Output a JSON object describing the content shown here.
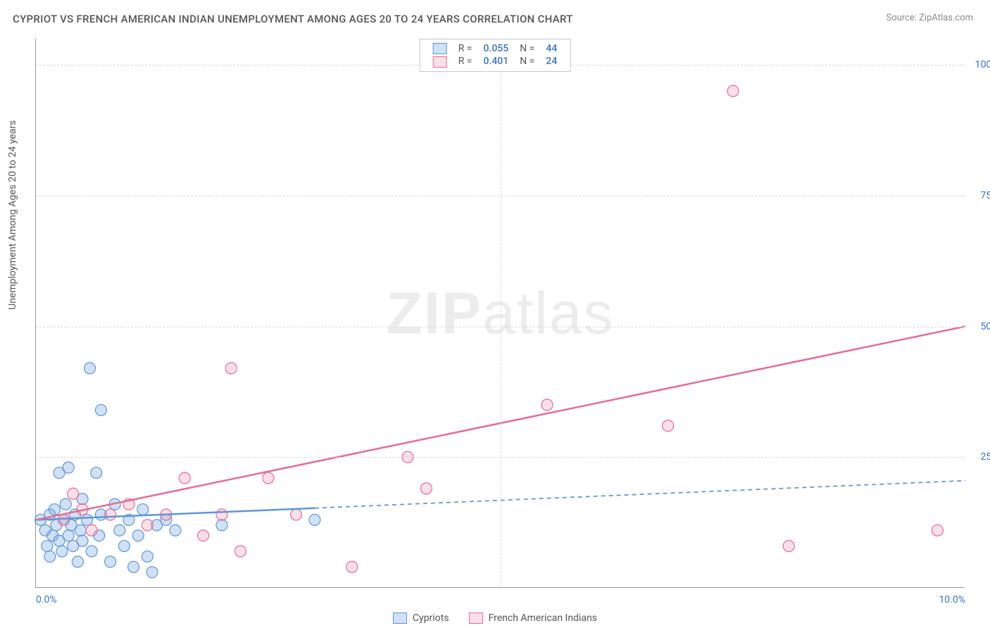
{
  "title": "CYPRIOT VS FRENCH AMERICAN INDIAN UNEMPLOYMENT AMONG AGES 20 TO 24 YEARS CORRELATION CHART",
  "source_prefix": "Source: ",
  "source_name": "ZipAtlas.com",
  "y_axis_label": "Unemployment Among Ages 20 to 24 years",
  "watermark_a": "ZIP",
  "watermark_b": "atlas",
  "chart": {
    "type": "scatter",
    "xlim": [
      0,
      10
    ],
    "ylim": [
      0,
      105
    ],
    "xticks": [
      0,
      10
    ],
    "xtick_labels": [
      "0.0%",
      "10.0%"
    ],
    "yticks": [
      25,
      50,
      75,
      100
    ],
    "ytick_labels": [
      "25.0%",
      "50.0%",
      "75.0%",
      "100.0%"
    ],
    "x_grid_at": [
      5
    ],
    "grid_color": "#d8d8d8",
    "axis_color": "#999999",
    "tick_label_color": "#3972c4",
    "background": "#ffffff",
    "marker_radius": 8,
    "marker_stroke_width": 1.2,
    "trend_line_width": 2.5,
    "trend_dash": "6 5"
  },
  "series": [
    {
      "id": "cypriots",
      "label": "Cypriots",
      "fill": "rgba(120,170,225,0.35)",
      "stroke": "#5f96d6",
      "R_label": "R =",
      "R": "0.055",
      "N_label": "N =",
      "N": "44",
      "trend": {
        "x1": 0.0,
        "y1": 13.0,
        "x2": 10.0,
        "y2": 20.5,
        "solid_until_x": 3.0
      },
      "points": [
        [
          0.05,
          13
        ],
        [
          0.1,
          11
        ],
        [
          0.12,
          8
        ],
        [
          0.15,
          14
        ],
        [
          0.15,
          6
        ],
        [
          0.18,
          10
        ],
        [
          0.2,
          15
        ],
        [
          0.22,
          12
        ],
        [
          0.25,
          9
        ],
        [
          0.25,
          22
        ],
        [
          0.28,
          7
        ],
        [
          0.3,
          13
        ],
        [
          0.32,
          16
        ],
        [
          0.35,
          10
        ],
        [
          0.35,
          23
        ],
        [
          0.38,
          12
        ],
        [
          0.4,
          8
        ],
        [
          0.42,
          14
        ],
        [
          0.45,
          5
        ],
        [
          0.48,
          11
        ],
        [
          0.5,
          17
        ],
        [
          0.5,
          9
        ],
        [
          0.55,
          13
        ],
        [
          0.58,
          42
        ],
        [
          0.6,
          7
        ],
        [
          0.65,
          22
        ],
        [
          0.68,
          10
        ],
        [
          0.7,
          14
        ],
        [
          0.7,
          34
        ],
        [
          0.8,
          5
        ],
        [
          0.85,
          16
        ],
        [
          0.9,
          11
        ],
        [
          0.95,
          8
        ],
        [
          1.0,
          13
        ],
        [
          1.05,
          4
        ],
        [
          1.1,
          10
        ],
        [
          1.15,
          15
        ],
        [
          1.2,
          6
        ],
        [
          1.25,
          3
        ],
        [
          1.3,
          12
        ],
        [
          1.4,
          13
        ],
        [
          1.5,
          11
        ],
        [
          2.0,
          12
        ],
        [
          3.0,
          13
        ]
      ]
    },
    {
      "id": "french_ai",
      "label": "French American Indians",
      "fill": "rgba(240,150,175,0.30)",
      "stroke": "#e76b94",
      "R_label": "R =",
      "R": "0.401",
      "N_label": "N =",
      "N": "24",
      "trend": {
        "x1": 0.0,
        "y1": 13.0,
        "x2": 10.0,
        "y2": 50.0,
        "solid_until_x": 10.0
      },
      "points": [
        [
          0.3,
          13
        ],
        [
          0.4,
          18
        ],
        [
          0.5,
          15
        ],
        [
          0.6,
          11
        ],
        [
          0.8,
          14
        ],
        [
          1.0,
          16
        ],
        [
          1.2,
          12
        ],
        [
          1.4,
          14
        ],
        [
          1.6,
          21
        ],
        [
          1.8,
          10
        ],
        [
          2.0,
          14
        ],
        [
          2.1,
          42
        ],
        [
          2.2,
          7
        ],
        [
          2.5,
          21
        ],
        [
          2.8,
          14
        ],
        [
          3.4,
          4
        ],
        [
          4.0,
          25
        ],
        [
          4.2,
          19
        ],
        [
          4.6,
          103
        ],
        [
          6.8,
          31
        ],
        [
          7.5,
          95
        ],
        [
          8.1,
          8
        ],
        [
          9.7,
          11
        ],
        [
          5.5,
          35
        ]
      ]
    }
  ],
  "legend_top": {
    "border_color": "#c7c7c7"
  }
}
